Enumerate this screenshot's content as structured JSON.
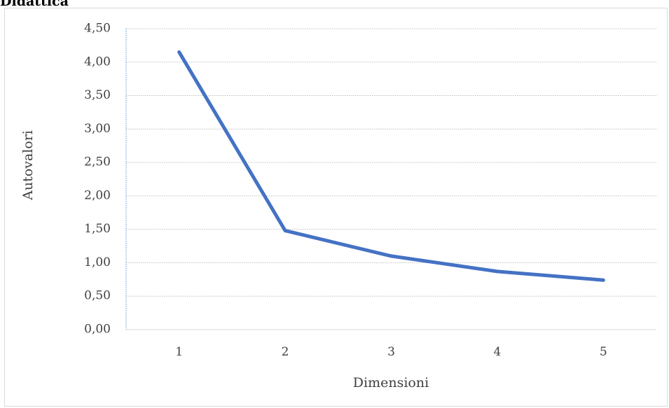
{
  "heading": "Didattica",
  "chart_data": {
    "type": "line",
    "title": "",
    "xlabel": "Dimensioni",
    "ylabel": "Autovalori",
    "categories": [
      "1",
      "2",
      "3",
      "4",
      "5"
    ],
    "series": [
      {
        "values": [
          4.15,
          1.48,
          1.1,
          0.87,
          0.74
        ],
        "color": "#4472c4"
      }
    ],
    "ylim": [
      0,
      4.5
    ],
    "ytick_values": [
      0,
      0.5,
      1,
      1.5,
      2,
      2.5,
      3,
      3.5,
      4,
      4.5
    ],
    "ytick_labels": [
      "0,00",
      "0,50",
      "1,00",
      "1,50",
      "2,00",
      "2,50",
      "3,00",
      "3,50",
      "4,00",
      "4,50"
    ],
    "grid": true,
    "legend": "none",
    "colors": {
      "line": "#4472c4",
      "gridline": "#bfbfbf",
      "y_axis_line": "#5b9bd5",
      "x_axis_line": "#d9d9d9",
      "text": "#404040"
    }
  }
}
